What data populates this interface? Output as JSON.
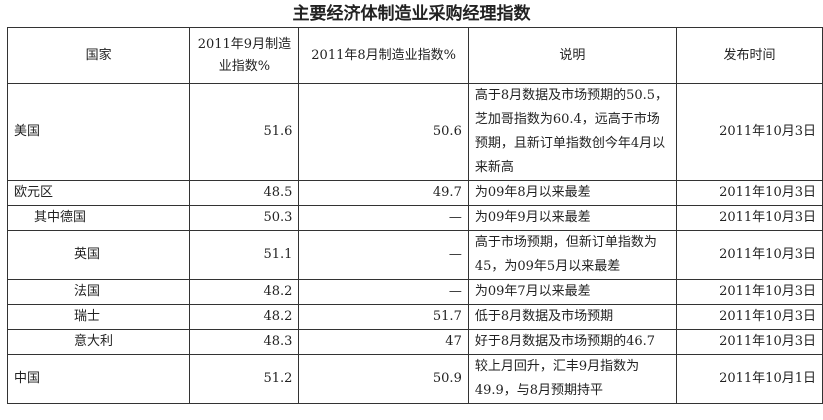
{
  "title": "主要经济体制造业采购经理指数",
  "headers": [
    "国家",
    "2011年9月制造业指数%",
    "2011年8月制造业指数%",
    "说明",
    "发布时间"
  ],
  "rows": [
    {
      "country": "美国",
      "indent": 0,
      "sep": "51.6",
      "aug": "50.6",
      "note": "高于8月数据及市场预期的50.5，芝加哥指数为60.4，远高于市场预期，且新订单指数创今年4月以来新高",
      "date": "2011年10月3日"
    },
    {
      "country": "欧元区",
      "indent": 0,
      "sep": "48.5",
      "aug": "49.7",
      "note": "为09年8月以来最差",
      "date": "2011年10月3日"
    },
    {
      "country": "其中德国",
      "indent": 1,
      "sep": "50.3",
      "aug": "—",
      "note": "为09年9月以来最差",
      "date": "2011年10月3日"
    },
    {
      "country": "英国",
      "indent": 2,
      "sep": "51.1",
      "aug": "—",
      "note": "高于市场预期，但新订单指数为45，为09年5月以来最差",
      "date": "2011年10月3日"
    },
    {
      "country": "法国",
      "indent": 2,
      "sep": "48.2",
      "aug": "—",
      "note": "为09年7月以来最差",
      "date": "2011年10月3日"
    },
    {
      "country": "瑞士",
      "indent": 2,
      "sep": "48.2",
      "aug": "51.7",
      "note": "低于8月数据及市场预期",
      "date": "2011年10月3日"
    },
    {
      "country": "意大利",
      "indent": 2,
      "sep": "48.3",
      "aug": "47",
      "note": "好于8月数据及市场预期的46.7",
      "date": "2011年10月3日"
    },
    {
      "country": "中国",
      "indent": 0,
      "sep": "51.2",
      "aug": "50.9",
      "note": "较上月回升，汇丰9月指数为49.9，与8月预期持平",
      "date": "2011年10月1日"
    }
  ]
}
